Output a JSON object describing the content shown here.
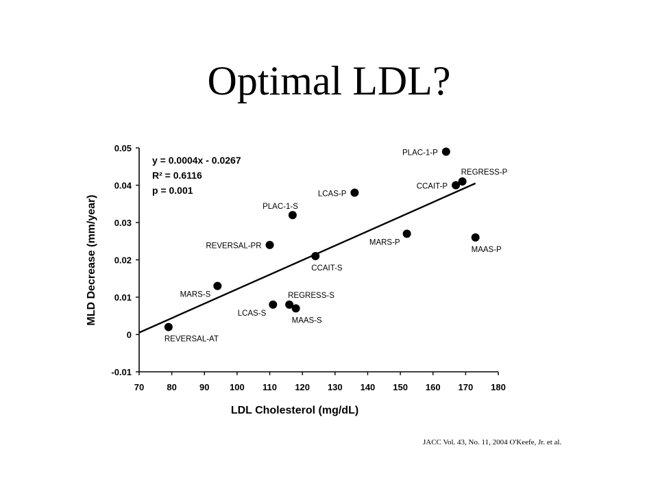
{
  "slide": {
    "title": "Optimal LDL?",
    "citation": "JACC Vol. 43, No. 11, 2004 O'Keefe, Jr. et al."
  },
  "chart_data": {
    "type": "scatter",
    "xlabel": "LDL Cholesterol (mg/dL)",
    "ylabel": "MLD Decrease (mm/year)",
    "xlim": [
      70,
      180
    ],
    "ylim": [
      -0.01,
      0.05
    ],
    "x_ticks": [
      70,
      80,
      90,
      100,
      110,
      120,
      130,
      140,
      150,
      160,
      170,
      180
    ],
    "y_ticks": [
      0.05,
      0.04,
      0.03,
      0.02,
      0.01,
      0,
      -0.01
    ],
    "y_tick_labels": [
      "0.05",
      "0.04",
      "0.03",
      "0.02",
      "0.01",
      "0",
      "-0.01"
    ],
    "grid": false,
    "annotation_lines": [
      "y = 0.0004x - 0.0267",
      "R² = 0.6116",
      "p = 0.001"
    ],
    "trendline": {
      "x": [
        70,
        173
      ],
      "y": [
        0.0005,
        0.0405
      ]
    },
    "points": [
      {
        "label": "REVERSAL-AT",
        "x": 79,
        "y": 0.002,
        "label_pos": "below-right"
      },
      {
        "label": "MARS-S",
        "x": 94,
        "y": 0.013,
        "label_pos": "below-left"
      },
      {
        "label": "REVERSAL-PR",
        "x": 110,
        "y": 0.024,
        "label_pos": "left"
      },
      {
        "label": "LCAS-S",
        "x": 111,
        "y": 0.008,
        "label_pos": "below-left"
      },
      {
        "label": "REGRESS-S",
        "x": 116,
        "y": 0.008,
        "label_pos": "above-right"
      },
      {
        "label": "MAAS-S",
        "x": 118,
        "y": 0.007,
        "label_pos": "below-right"
      },
      {
        "label": "PLAC-1-S",
        "x": 117,
        "y": 0.032,
        "label_pos": "above-left"
      },
      {
        "label": "CCAIT-S",
        "x": 124,
        "y": 0.021,
        "label_pos": "below-right"
      },
      {
        "label": "LCAS-P",
        "x": 136,
        "y": 0.038,
        "label_pos": "left"
      },
      {
        "label": "MARS-P",
        "x": 152,
        "y": 0.027,
        "label_pos": "below-left"
      },
      {
        "label": "PLAC-1-P",
        "x": 164,
        "y": 0.049,
        "label_pos": "left"
      },
      {
        "label": "CCAIT-P",
        "x": 167,
        "y": 0.04,
        "label_pos": "left"
      },
      {
        "label": "REGRESS-P",
        "x": 169,
        "y": 0.041,
        "label_pos": "above-right"
      },
      {
        "label": "MAAS-P",
        "x": 173,
        "y": 0.026,
        "label_pos": "below-right"
      }
    ]
  }
}
